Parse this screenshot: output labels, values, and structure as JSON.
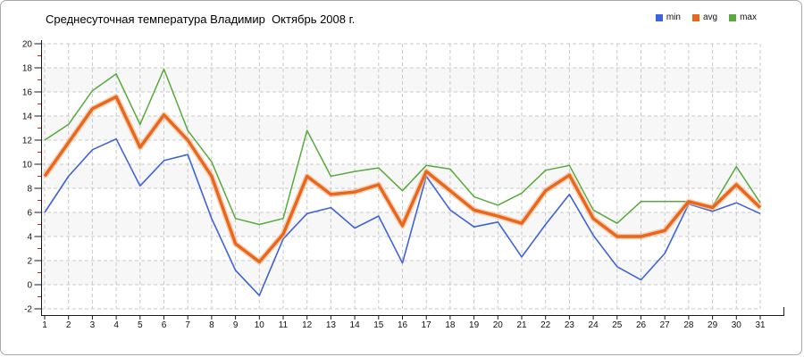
{
  "chart_data": {
    "type": "line",
    "title": "Среднесуточная температура Владимир  Октябрь 2008 г.",
    "xlabel": "",
    "ylabel": "",
    "x": [
      1,
      2,
      3,
      4,
      5,
      6,
      7,
      8,
      9,
      10,
      11,
      12,
      13,
      14,
      15,
      16,
      17,
      18,
      19,
      20,
      21,
      22,
      23,
      24,
      25,
      26,
      27,
      28,
      29,
      30,
      31
    ],
    "series": [
      {
        "name": "min",
        "color": "#3f63d8",
        "width": 1.6,
        "values": [
          6.0,
          9.0,
          11.2,
          12.1,
          8.2,
          10.3,
          10.8,
          5.5,
          1.2,
          -0.9,
          3.8,
          5.9,
          6.4,
          4.7,
          5.7,
          1.8,
          9.0,
          6.2,
          4.8,
          5.2,
          2.3,
          5.0,
          7.5,
          4.1,
          1.5,
          0.4,
          2.6,
          6.7,
          6.1,
          6.8,
          5.9
        ]
      },
      {
        "name": "avg",
        "color": "#e8671c",
        "width": 3.4,
        "values": [
          9.0,
          11.8,
          14.6,
          15.6,
          11.4,
          14.1,
          12.0,
          9.0,
          3.4,
          1.9,
          4.2,
          9.0,
          7.5,
          7.7,
          8.3,
          4.9,
          9.4,
          7.8,
          6.2,
          5.7,
          5.1,
          7.8,
          9.1,
          5.5,
          4.0,
          4.0,
          4.5,
          6.9,
          6.4,
          8.3,
          6.4
        ]
      },
      {
        "name": "max",
        "color": "#58aa3c",
        "width": 1.5,
        "values": [
          12.0,
          13.3,
          16.1,
          17.5,
          13.3,
          17.9,
          12.8,
          10.2,
          5.5,
          5.0,
          5.5,
          12.8,
          9.0,
          9.4,
          9.7,
          7.8,
          9.9,
          9.6,
          7.3,
          6.6,
          7.6,
          9.5,
          9.9,
          6.2,
          5.1,
          6.9,
          6.9,
          6.9,
          6.5,
          9.8,
          6.8
        ]
      }
    ],
    "ylim": [
      -2,
      20
    ],
    "ytick_step": 2,
    "grid": "dashed",
    "legend_position": "top-right",
    "plot_bands": "alternating horizontal, every 2 units",
    "colors": {
      "avg_halo": "#f4b184",
      "band": "#f7f7f7",
      "gridline": "#c8c8c8",
      "axis": "#1a1a1a",
      "minor_tick": "#cc2222",
      "tick_label": "#111111"
    }
  }
}
